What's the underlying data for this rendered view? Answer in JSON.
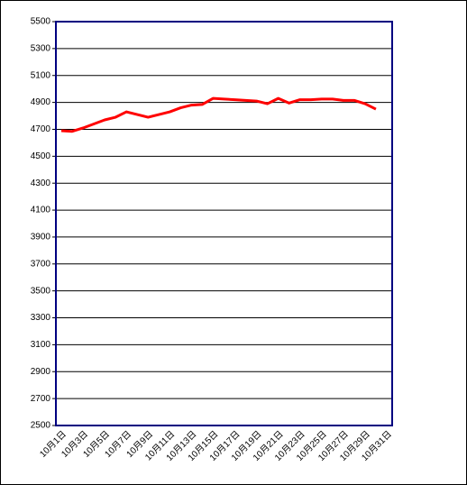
{
  "chart_data": {
    "type": "line",
    "categories": [
      "10月1日",
      null,
      "10月3日",
      null,
      "10月5日",
      null,
      "10月7日",
      null,
      "10月9日",
      null,
      "10月11日",
      null,
      "10月13日",
      null,
      "10月15日",
      null,
      "10月17日",
      null,
      "10月19日",
      null,
      "10月21日",
      null,
      "10月23日",
      null,
      "10月25日",
      null,
      "10月27日",
      null,
      "10月29日",
      null,
      "10月31日"
    ],
    "values": [
      4690,
      4685,
      4710,
      4740,
      4770,
      4790,
      4830,
      4810,
      4790,
      4810,
      4830,
      4860,
      4880,
      4885,
      4930,
      4925,
      4920,
      4915,
      4910,
      4890,
      4930,
      4895,
      4920,
      4920,
      4925,
      4925,
      4915,
      4915,
      4890,
      4850,
      null
    ],
    "color": "#ff0000",
    "ylim": [
      2500,
      5500
    ],
    "yticks": [
      2500,
      2700,
      2900,
      3100,
      3300,
      3500,
      3700,
      3900,
      4100,
      4300,
      4500,
      4700,
      4900,
      5100,
      5300,
      5500
    ],
    "grid": true
  }
}
